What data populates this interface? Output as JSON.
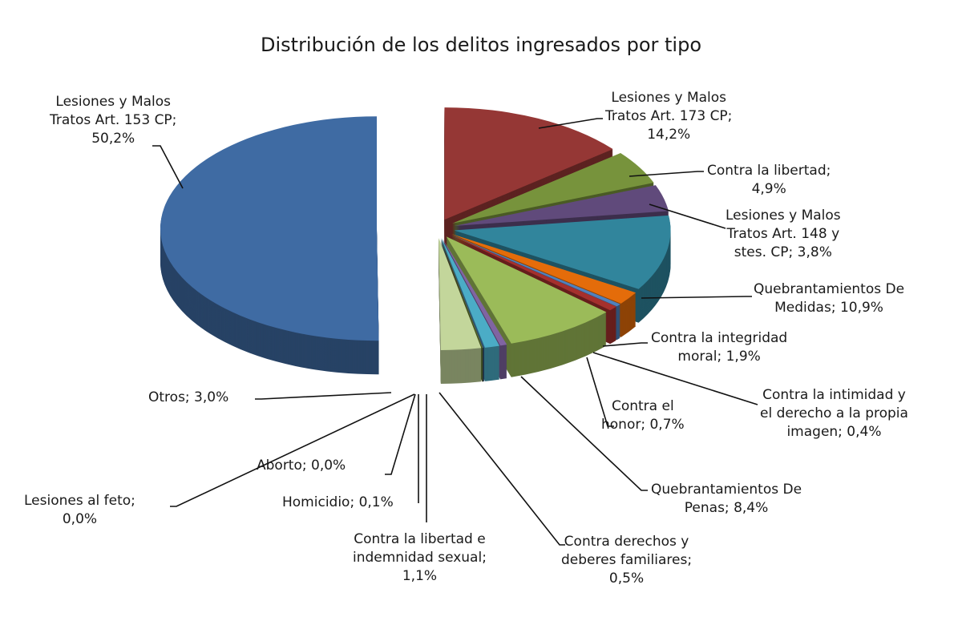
{
  "chart_data": {
    "type": "pie",
    "style": "3d-exploded",
    "title": "Distribución de los delitos ingresados por tipo",
    "legend": "none (data labels with leader lines)",
    "slices": [
      {
        "name": "Lesiones y Malos Tratos Art. 173 CP",
        "value": 14.2,
        "label": [
          "Lesiones y Malos",
          "Tratos Art. 173 CP;",
          "14,2%"
        ],
        "color": "#953735"
      },
      {
        "name": "Contra la libertad",
        "value": 4.9,
        "label": [
          "Contra la libertad;",
          "4,9%"
        ],
        "color": "#77933c"
      },
      {
        "name": "Lesiones y Malos Tratos Art. 148 y stes. CP",
        "value": 3.8,
        "label": [
          "Lesiones y Malos",
          "Tratos Art. 148 y",
          "stes. CP; 3,8%"
        ],
        "color": "#604a7b"
      },
      {
        "name": "Quebrantamientos De Medidas",
        "value": 10.9,
        "label": [
          "Quebrantamientos De",
          "Medidas; 10,9%"
        ],
        "color": "#31859c"
      },
      {
        "name": "Contra la integridad moral",
        "value": 1.9,
        "label": [
          "Contra la integridad",
          "moral; 1,9%"
        ],
        "color": "#e46c0a"
      },
      {
        "name": "Contra la intimidad y el derecho a la propia imagen",
        "value": 0.4,
        "label": [
          "Contra la intimidad y",
          "el derecho a la propia",
          "imagen; 0,4%"
        ],
        "color": "#4f81bd"
      },
      {
        "name": "Contra el honor",
        "value": 0.7,
        "label": [
          "Contra el",
          "honor; 0,7%"
        ],
        "color": "#a5302d"
      },
      {
        "name": "Quebrantamientos De Penas",
        "value": 8.4,
        "label": [
          "Quebrantamientos De",
          "Penas; 8,4%"
        ],
        "color": "#9bbb59"
      },
      {
        "name": "Contra derechos y deberes familiares",
        "value": 0.5,
        "label": [
          "Contra derechos y",
          "deberes familiares;",
          "0,5%"
        ],
        "color": "#8064a2"
      },
      {
        "name": "Contra la libertad e indemnidad sexual",
        "value": 1.1,
        "label": [
          "Contra la libertad e",
          "indemnidad sexual;",
          "1,1%"
        ],
        "color": "#4bacc6"
      },
      {
        "name": "Homicidio",
        "value": 0.1,
        "label": [
          "Homicidio; 0,1%"
        ],
        "color": "#2c4d75"
      },
      {
        "name": "Aborto",
        "value": 0.0,
        "label": [
          "Aborto; 0,0%"
        ],
        "color": "#772c2a"
      },
      {
        "name": "Lesiones al feto",
        "value": 0.0,
        "label": [
          "Lesiones al feto;",
          "0,0%"
        ],
        "color": "#5f7530"
      },
      {
        "name": "Otros",
        "value": 3.0,
        "label": [
          "Otros; 3,0%"
        ],
        "color": "#c3d69b"
      },
      {
        "name": "Lesiones y Malos Tratos Art. 153 CP",
        "value": 50.2,
        "label": [
          "Lesiones y Malos",
          "Tratos Art. 153 CP;",
          "50,2%"
        ],
        "color": "#3f6ba3"
      }
    ]
  }
}
